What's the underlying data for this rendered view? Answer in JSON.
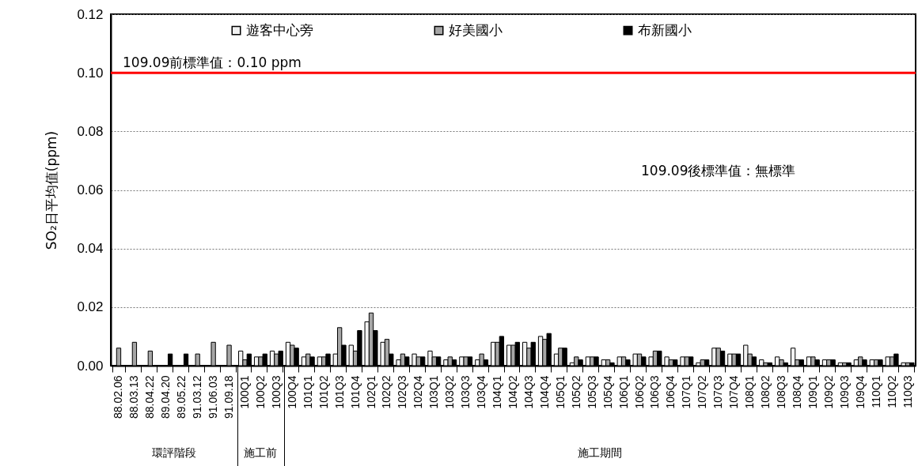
{
  "chart_data": {
    "type": "bar",
    "ylabel": "SO₂日平均值(ppm)",
    "categories": [
      "88.02.06",
      "88.03.13",
      "88.04.22",
      "89.04.20",
      "89.05.22",
      "91.03.12",
      "91.06.03",
      "91.09.18",
      "100Q1",
      "100Q2",
      "100Q3",
      "100Q4",
      "101Q1",
      "101Q2",
      "101Q3",
      "101Q4",
      "102Q1",
      "102Q2",
      "102Q3",
      "102Q4",
      "103Q1",
      "103Q2",
      "103Q3",
      "103Q4",
      "104Q1",
      "104Q2",
      "104Q3",
      "104Q4",
      "105Q1",
      "105Q2",
      "105Q3",
      "105Q4",
      "106Q1",
      "106Q2",
      "106Q3",
      "106Q4",
      "107Q1",
      "107Q2",
      "107Q3",
      "107Q4",
      "108Q1",
      "108Q2",
      "108Q3",
      "108Q4",
      "109Q1",
      "109Q2",
      "109Q3",
      "109Q4",
      "110Q1",
      "110Q2",
      "110Q3"
    ],
    "series": [
      {
        "name": "遊客中心旁",
        "color": "#f2f2f2",
        "values": [
          null,
          null,
          null,
          null,
          null,
          null,
          null,
          null,
          0.005,
          0.003,
          0.005,
          0.008,
          0.003,
          0.003,
          0.004,
          0.007,
          0.015,
          0.008,
          0.002,
          0.004,
          0.005,
          0.002,
          0.003,
          0.002,
          0.008,
          0.007,
          0.008,
          0.01,
          0.004,
          0.001,
          0.003,
          0.002,
          0.003,
          0.004,
          0.003,
          0.003,
          0.003,
          0.001,
          0.006,
          0.004,
          0.007,
          0.002,
          0.003,
          0.006,
          0.003,
          0.002,
          0.001,
          0.002,
          0.002,
          0.003,
          0.001
        ]
      },
      {
        "name": "好美國小",
        "color": "#a6a6a6",
        "values": [
          0.006,
          0.008,
          0.005,
          null,
          null,
          0.004,
          0.008,
          0.007,
          0.002,
          0.003,
          0.004,
          0.007,
          0.004,
          0.003,
          0.013,
          0.005,
          0.018,
          0.009,
          0.004,
          0.003,
          0.003,
          0.003,
          0.003,
          0.004,
          0.008,
          0.007,
          0.006,
          0.009,
          0.006,
          0.003,
          0.003,
          0.002,
          0.003,
          0.004,
          0.005,
          0.002,
          0.003,
          0.002,
          0.006,
          0.004,
          0.004,
          0.001,
          0.002,
          0.002,
          0.003,
          0.002,
          0.001,
          0.003,
          0.002,
          0.003,
          0.001
        ]
      },
      {
        "name": "布新國小",
        "color": "#000000",
        "values": [
          null,
          null,
          null,
          0.004,
          0.004,
          null,
          null,
          null,
          0.004,
          0.004,
          0.005,
          0.006,
          0.003,
          0.004,
          0.007,
          0.012,
          0.012,
          0.004,
          0.003,
          0.003,
          0.003,
          0.002,
          0.003,
          0.002,
          0.01,
          0.008,
          0.008,
          0.011,
          0.006,
          0.002,
          0.003,
          0.001,
          0.002,
          0.003,
          0.005,
          0.002,
          0.003,
          0.002,
          0.005,
          0.004,
          0.003,
          0.001,
          0.001,
          0.002,
          0.002,
          0.002,
          0.001,
          0.002,
          0.002,
          0.004,
          0.001
        ]
      }
    ],
    "ylim": [
      0,
      0.12
    ],
    "yticks": [
      {
        "value": 0,
        "label": "0.00"
      },
      {
        "value": 0.02,
        "label": "0.02"
      },
      {
        "value": 0.04,
        "label": "0.04"
      },
      {
        "value": 0.06,
        "label": "0.06"
      },
      {
        "value": 0.08,
        "label": "0.08"
      },
      {
        "value": 0.1,
        "label": "0.10"
      },
      {
        "value": 0.12,
        "label": "0.12"
      }
    ],
    "grid": "y",
    "legend": "top",
    "ref_lines": [
      {
        "axis": "y",
        "value": 0.1,
        "label": "109.09前標準值：0.10 ppm",
        "color": "#ff0000"
      }
    ],
    "annotations": [
      "109.09後標準值：無標準",
      "環評階段",
      "施工前",
      "施工期間"
    ]
  }
}
